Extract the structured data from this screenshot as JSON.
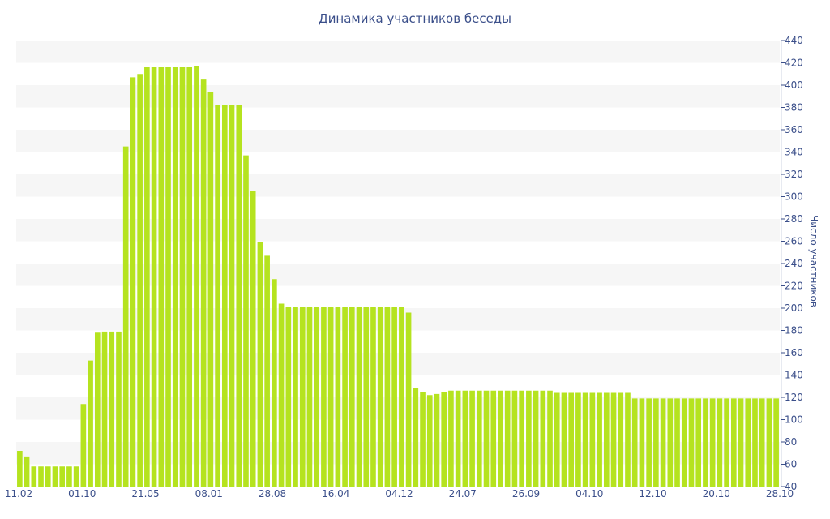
{
  "chart_data": {
    "type": "bar",
    "title": "Динамика участников беседы",
    "ylabel": "Число участников",
    "ylim": [
      40,
      440
    ],
    "yticks": [
      40,
      60,
      80,
      100,
      120,
      140,
      160,
      180,
      200,
      220,
      240,
      260,
      280,
      300,
      320,
      340,
      360,
      380,
      400,
      420,
      440
    ],
    "xtick_labels": [
      "11.02",
      "01.10",
      "21.05",
      "08.01",
      "28.08",
      "16.04",
      "04.12",
      "24.07",
      "26.09",
      "04.10",
      "12.10",
      "20.10",
      "28.10"
    ],
    "grid": "horizontal alternating bands",
    "bar_color": "#b5e31f",
    "band_color": "#f6f6f6",
    "text_color": "#3b4f8a",
    "values": [
      72,
      67,
      58,
      58,
      58,
      58,
      58,
      58,
      58,
      114,
      153,
      178,
      179,
      179,
      179,
      345,
      407,
      410,
      416,
      416,
      416,
      416,
      416,
      416,
      416,
      417,
      405,
      394,
      382,
      382,
      382,
      382,
      337,
      305,
      259,
      247,
      226,
      204,
      201,
      201,
      201,
      201,
      201,
      201,
      201,
      201,
      201,
      201,
      201,
      201,
      201,
      201,
      201,
      201,
      201,
      196,
      128,
      125,
      122,
      123,
      125,
      126,
      126,
      126,
      126,
      126,
      126,
      126,
      126,
      126,
      126,
      126,
      126,
      126,
      126,
      126,
      124,
      124,
      124,
      124,
      124,
      124,
      124,
      124,
      124,
      124,
      124,
      119,
      119,
      119,
      119,
      119,
      119,
      119,
      119,
      119,
      119,
      119,
      119,
      119,
      119,
      119,
      119,
      119,
      119,
      119,
      119,
      119
    ]
  }
}
